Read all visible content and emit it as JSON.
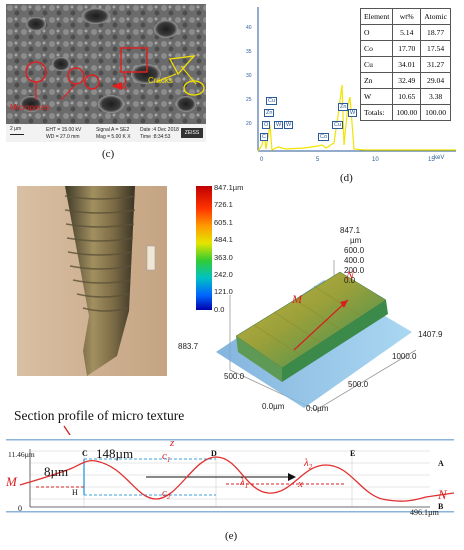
{
  "panel_c": {
    "caption": "(c)",
    "annotation_a": "A",
    "annotation_cracks": "Cracks",
    "annotation_micropores": "Micropores",
    "scalebar": "2 µm",
    "info_eht": "EHT = 15.00 kV",
    "info_wd": "WD = 27.0 mm",
    "info_signal": "Signal A = SE2",
    "info_mag": "Mag = 5.00 K X",
    "info_date": "Date :4 Dec 2018",
    "info_time": "Time :8:34:53",
    "logo": "ZEISS"
  },
  "panel_d": {
    "caption": "(d)",
    "y_ticks": [
      "20",
      "25",
      "30",
      "35",
      "40"
    ],
    "x_ticks": [
      "0",
      "5",
      "10",
      "15"
    ],
    "x_unit": "keV",
    "peaks": [
      "C",
      "O",
      "Zn",
      "Cu",
      "W",
      "W",
      "Co",
      "Cu",
      "Zn",
      "W"
    ],
    "table": {
      "headers": [
        "Element",
        "wt%",
        "Atomic"
      ],
      "rows": [
        [
          "O",
          "5.14",
          "18.77"
        ],
        [
          "Co",
          "17.70",
          "17.54"
        ],
        [
          "Cu",
          "34.01",
          "31.27"
        ],
        [
          "Zn",
          "32.49",
          "29.04"
        ],
        [
          "W",
          "10.65",
          "3.38"
        ],
        [
          "Totals:",
          "100.00",
          "100.00"
        ]
      ]
    }
  },
  "scale_bar": {
    "ticks": [
      "847.1µm",
      "726.1",
      "605.1",
      "484.1",
      "363.0",
      "242.0",
      "121.0",
      "0.0"
    ]
  },
  "surface3d": {
    "z_labels": [
      "847.1",
      "µm",
      "600.0",
      "400.0",
      "200.0",
      "0.0"
    ],
    "right_labels": [
      "1407.9",
      "1000.0",
      "500.0",
      "0.0µm"
    ],
    "left_labels": [
      "883.7",
      "500.0",
      "0.0µm"
    ],
    "m_label": "M",
    "n_label": "N"
  },
  "panel_e": {
    "caption": "(e)",
    "title": "Section profile of micro texture",
    "y_top": "11.46µm",
    "y_zero": "0",
    "x_end": "496.1µm",
    "dim_8": "8µm",
    "dim_148": "148µm",
    "pt_C": "C",
    "pt_D": "D",
    "pt_E": "E",
    "pt_A": "A",
    "pt_B": "B",
    "pt_H": "H",
    "c1": "c",
    "c1_sub": "1",
    "c2": "c",
    "c2_sub": "2",
    "lambda1": "λ",
    "lambda1_sub": "1",
    "lambda2": "λ",
    "lambda2_sub": "2",
    "z": "z",
    "x": "x",
    "M": "M",
    "N": "N"
  }
}
